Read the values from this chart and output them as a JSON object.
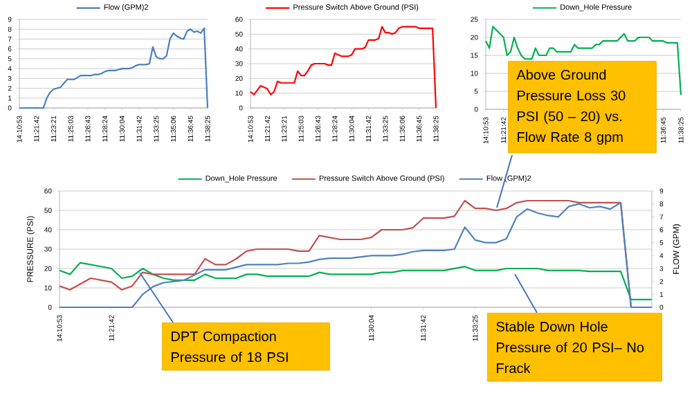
{
  "chart_data": [
    {
      "type": "line",
      "categories": [
        "14:10:53",
        null,
        null,
        null,
        null,
        "11:21:42",
        null,
        null,
        null,
        null,
        "11:23:21",
        null,
        null,
        null,
        null,
        "11:25:03",
        null,
        null,
        null,
        null,
        "11:26:43",
        null,
        null,
        null,
        null,
        "11:28:24",
        null,
        null,
        null,
        null,
        "11:30:04",
        null,
        null,
        null,
        null,
        "11:31:42",
        null,
        null,
        null,
        null,
        "11:33:25",
        null,
        null,
        null,
        null,
        "11:35:06",
        null,
        null,
        null,
        null,
        "11:36:45",
        null,
        null,
        null,
        null,
        "11:38:25"
      ],
      "series": [
        {
          "name": "Flow (GPM)2",
          "color": "#4a7ebb",
          "values": [
            0,
            0,
            0,
            0,
            0,
            0,
            0,
            0,
            1.0,
            1.6,
            1.9,
            2.0,
            2.1,
            2.5,
            2.9,
            2.9,
            2.9,
            3.1,
            3.3,
            3.3,
            3.3,
            3.3,
            3.4,
            3.4,
            3.5,
            3.7,
            3.8,
            3.8,
            3.8,
            3.9,
            4.0,
            4.0,
            4.0,
            4.1,
            4.3,
            4.4,
            4.4,
            4.4,
            4.5,
            6.2,
            5.2,
            5.0,
            5.0,
            5.3,
            7.0,
            7.6,
            7.3,
            7.1,
            7.0,
            7.8,
            8.0,
            7.7,
            7.8,
            7.6,
            8.1,
            0
          ]
        }
      ],
      "ylim": [
        0,
        9
      ],
      "yticks": [
        0,
        1,
        2,
        3,
        4,
        5,
        6,
        7,
        8,
        9
      ],
      "grid": "y",
      "legend": "top"
    },
    {
      "type": "line",
      "categories": [
        "14:10:53",
        null,
        null,
        null,
        null,
        "11:21:42",
        null,
        null,
        null,
        null,
        "11:23:21",
        null,
        null,
        null,
        null,
        "11:25:03",
        null,
        null,
        null,
        null,
        "11:26:43",
        null,
        null,
        null,
        null,
        "11:28:24",
        null,
        null,
        null,
        null,
        "11:30:04",
        null,
        null,
        null,
        null,
        "11:31:42",
        null,
        null,
        null,
        null,
        "11:33:25",
        null,
        null,
        null,
        null,
        "11:35:06",
        null,
        null,
        null,
        null,
        "11:36:45",
        null,
        null,
        null,
        null,
        "11:38:25"
      ],
      "series": [
        {
          "name": "Pressure Switch Above Ground (PSI)",
          "color": "#ff0000",
          "values": [
            11,
            9,
            12,
            15,
            14,
            13,
            9,
            11,
            18,
            17,
            17,
            17,
            17,
            17,
            25,
            22,
            22,
            25,
            29,
            30,
            30,
            30,
            30,
            29,
            29,
            37,
            36,
            35,
            35,
            35,
            36,
            40,
            40,
            40,
            41,
            46,
            46,
            46,
            47,
            55,
            51,
            51,
            50,
            51,
            54,
            55,
            55,
            55,
            55,
            55,
            54,
            54,
            54,
            54,
            54,
            0
          ]
        }
      ],
      "ylim": [
        0,
        60
      ],
      "yticks": [
        0,
        10,
        20,
        30,
        40,
        50,
        60
      ],
      "grid": "y",
      "legend": "top"
    },
    {
      "type": "line",
      "categories": [
        "14:10:53",
        null,
        null,
        null,
        null,
        "11:21:42",
        null,
        null,
        null,
        null,
        null,
        null,
        null,
        null,
        null,
        null,
        null,
        null,
        null,
        null,
        null,
        null,
        null,
        null,
        null,
        null,
        null,
        null,
        null,
        null,
        null,
        null,
        null,
        null,
        null,
        null,
        null,
        null,
        null,
        null,
        null,
        null,
        null,
        null,
        null,
        null,
        null,
        null,
        null,
        null,
        "11:36:45",
        null,
        null,
        null,
        null,
        "11:38:25"
      ],
      "series": [
        {
          "name": "Down_Hole Pressure",
          "color": "#00b050",
          "values": [
            19,
            17,
            23,
            22,
            21,
            20,
            15,
            16,
            20,
            17,
            15,
            14,
            14,
            14,
            17,
            15,
            15,
            15,
            17,
            17,
            16,
            16,
            16,
            16,
            16,
            18,
            17,
            17,
            17,
            17,
            17,
            18,
            18,
            19,
            19,
            19,
            19,
            19,
            20,
            21,
            19,
            19,
            19,
            20,
            20,
            20,
            20,
            19,
            19,
            19,
            19,
            18.5,
            18.5,
            18.5,
            18.5,
            4
          ]
        }
      ],
      "ylim": [
        0,
        25
      ],
      "yticks": [
        0,
        5,
        10,
        15,
        20,
        25
      ],
      "grid": "y",
      "legend": "top"
    },
    {
      "type": "line",
      "categories": [
        "14:10:53",
        null,
        null,
        null,
        null,
        "11:21:42",
        null,
        null,
        null,
        null,
        null,
        null,
        null,
        null,
        null,
        null,
        null,
        null,
        null,
        null,
        null,
        null,
        null,
        null,
        null,
        null,
        null,
        null,
        null,
        null,
        "11:30:04",
        null,
        null,
        null,
        null,
        "11:31:42",
        null,
        null,
        null,
        null,
        "11:33:25",
        null,
        null,
        null,
        null,
        null,
        null,
        null,
        null,
        null,
        null,
        null,
        null,
        null,
        null,
        null,
        null,
        null
      ],
      "series": [
        {
          "name": "Down_Hole Pressure",
          "color": "#00b050",
          "values": [
            19,
            17,
            23,
            22,
            21,
            20,
            15,
            16,
            20,
            17,
            15,
            14,
            14,
            14,
            17,
            15,
            15,
            15,
            17,
            17,
            16,
            16,
            16,
            16,
            16,
            18,
            17,
            17,
            17,
            17,
            17,
            18,
            18,
            19,
            19,
            19,
            19,
            19,
            20,
            21,
            19,
            19,
            19,
            20,
            20,
            20,
            20,
            19,
            19,
            19,
            19,
            18.5,
            18.5,
            18.5,
            18.5,
            4,
            4,
            4
          ]
        },
        {
          "name": "Pressure Switch Above Ground (PSI)",
          "color": "#c0504d",
          "values": [
            11,
            9,
            12,
            15,
            14,
            13,
            9,
            11,
            18,
            17,
            17,
            17,
            17,
            17,
            25,
            22,
            22,
            25,
            29,
            30,
            30,
            30,
            30,
            29,
            29,
            37,
            36,
            35,
            35,
            35,
            36,
            40,
            40,
            40,
            41,
            46,
            46,
            46,
            47,
            55,
            51,
            51,
            50,
            51,
            54,
            55,
            55,
            55,
            55,
            55,
            54,
            54,
            54,
            54,
            54,
            0,
            null,
            null
          ]
        },
        {
          "name": "Flow (GPM)2",
          "color": "#4f81bd",
          "axis": "y2",
          "values": [
            0,
            0,
            0,
            0,
            0,
            0,
            0,
            0,
            1.0,
            1.6,
            1.9,
            2.0,
            2.1,
            2.5,
            2.9,
            2.9,
            2.9,
            3.1,
            3.3,
            3.3,
            3.3,
            3.3,
            3.4,
            3.4,
            3.5,
            3.7,
            3.8,
            3.8,
            3.8,
            3.9,
            4.0,
            4.0,
            4.0,
            4.1,
            4.3,
            4.4,
            4.4,
            4.4,
            4.5,
            6.2,
            5.2,
            5.0,
            5.0,
            5.3,
            7.0,
            7.6,
            7.3,
            7.1,
            7.0,
            7.8,
            8.0,
            7.7,
            7.8,
            7.6,
            8.1,
            0,
            0,
            0
          ]
        }
      ],
      "ylabel": "PRESSURE (PSI)",
      "y2label": "FLOW (GPM)",
      "ylim": [
        0,
        60
      ],
      "yticks": [
        0,
        10,
        20,
        30,
        40,
        50,
        60
      ],
      "y2lim": [
        0,
        9
      ],
      "y2ticks": [
        0,
        1,
        2,
        3,
        4,
        5,
        6,
        7,
        8,
        9
      ],
      "grid": "y",
      "legend": "top",
      "annotations": [
        "Above Ground Pressure Loss 30 PSI (50 – 20) vs. Flow Rate 8 gpm",
        "DPT Compaction Pressure of 18 PSI",
        "Stable Down Hole Pressure of 20 PSI– No Frack"
      ]
    }
  ]
}
